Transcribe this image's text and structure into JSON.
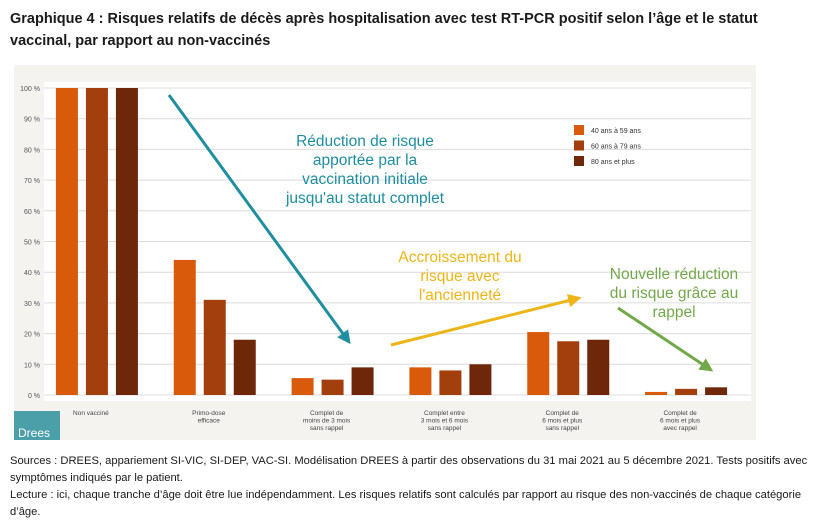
{
  "title": "Graphique 4 : Risques relatifs de décès après hospitalisation avec test RT-PCR positif selon l’âge et le statut vaccinal, par rapport au non-vaccinés",
  "logo_text": "Drees",
  "sources": "Sources : DREES, appariement SI-VIC, SI-DEP, VAC-SI. Modélisation DREES à partir des observations du 31 mai 2021 au 5 décembre 2021. Tests positifs avec symptômes indiqués par le patient.",
  "lecture": "Lecture : ici, chaque tranche d’âge doit être lue indépendamment. Les risques relatifs sont calculés par rapport au risque des non-vaccinés de chaque catégorie d’âge.",
  "chart_data": {
    "type": "bar",
    "title": "",
    "xlabel": "",
    "ylabel": "",
    "ylim": [
      0,
      100
    ],
    "yticks": [
      "0 %",
      "10 %",
      "20 %",
      "30 %",
      "40 %",
      "50 %",
      "60 %",
      "70 %",
      "80 %",
      "90 %",
      "100 %"
    ],
    "grid": true,
    "legend_position": "top-right",
    "categories": [
      [
        "Non vacciné"
      ],
      [
        "Primo-dose",
        "efficace"
      ],
      [
        "Complet de",
        "moins de 3 mois",
        "sans rappel"
      ],
      [
        "Complet entre",
        "3 mois et 6 mois",
        "sans rappel"
      ],
      [
        "Complet de",
        "6 mois et plus",
        "sans rappel"
      ],
      [
        "Complet de",
        "6 mois et plus",
        "avec rappel"
      ]
    ],
    "series": [
      {
        "name": "40 ans à 59 ans",
        "color": "#d95a0b",
        "values": [
          100,
          44,
          5.5,
          9,
          20.5,
          1
        ]
      },
      {
        "name": "60 ans à 79 ans",
        "color": "#a33f0c",
        "values": [
          100,
          31,
          5,
          8,
          17.5,
          2
        ]
      },
      {
        "name": "80 ans et plus",
        "color": "#6e2708",
        "values": [
          100,
          18,
          9,
          10,
          18,
          2.5
        ]
      }
    ],
    "annotations": [
      {
        "text": [
          "Réduction de risque",
          "apportée par la",
          "vaccination initiale",
          "jusqu'au statut complet"
        ],
        "color": "#1f8ea0"
      },
      {
        "text": [
          "Accroissement du",
          "risque avec",
          "l'ancienneté"
        ],
        "color": "#eeb518"
      },
      {
        "text": [
          "Nouvelle réduction",
          "du risque grâce au",
          "rappel"
        ],
        "color": "#73a84a"
      }
    ]
  }
}
